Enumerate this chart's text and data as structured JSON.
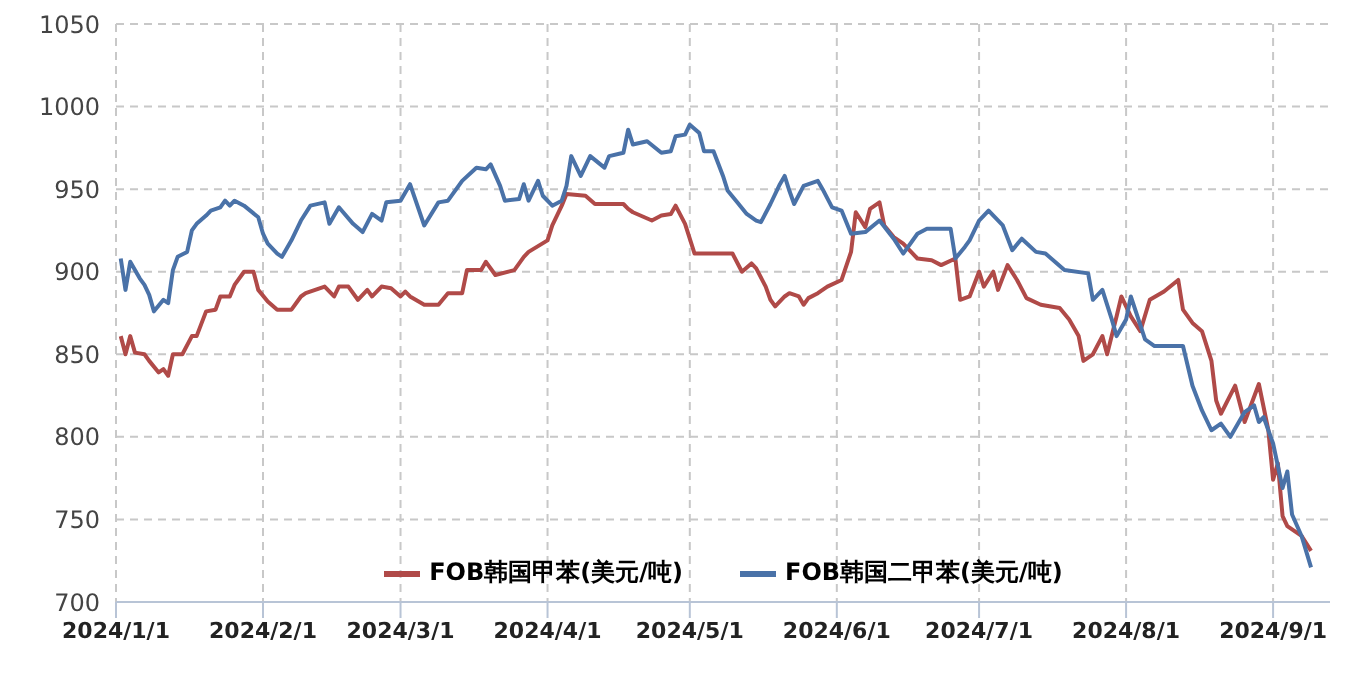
{
  "chart_data": {
    "type": "line",
    "xlim": [
      "2024-01-01",
      "2024-09-13"
    ],
    "xticks": [
      {
        "value": "2024-01-01",
        "label": "2024/1/1"
      },
      {
        "value": "2024-02-01",
        "label": "2024/2/1"
      },
      {
        "value": "2024-03-01",
        "label": "2024/3/1"
      },
      {
        "value": "2024-04-01",
        "label": "2024/4/1"
      },
      {
        "value": "2024-05-01",
        "label": "2024/5/1"
      },
      {
        "value": "2024-06-01",
        "label": "2024/6/1"
      },
      {
        "value": "2024-07-01",
        "label": "2024/7/1"
      },
      {
        "value": "2024-08-01",
        "label": "2024/8/1"
      },
      {
        "value": "2024-09-01",
        "label": "2024/9/1"
      }
    ],
    "ylim": [
      700,
      1050
    ],
    "yticks": [
      700,
      750,
      800,
      850,
      900,
      950,
      1000,
      1050
    ],
    "grid": true,
    "legend": "bottom",
    "marker": "none",
    "line_style": "solid",
    "series": [
      {
        "name": "FOB韩国甲苯(美元/吨)",
        "color": "#b04a48",
        "x": [
          "2024-01-02",
          "2024-01-03",
          "2024-01-04",
          "2024-01-05",
          "2024-01-07",
          "2024-01-08",
          "2024-01-10",
          "2024-01-11",
          "2024-01-12",
          "2024-01-13",
          "2024-01-15",
          "2024-01-17",
          "2024-01-18",
          "2024-01-20",
          "2024-01-22",
          "2024-01-23",
          "2024-01-25",
          "2024-01-26",
          "2024-01-28",
          "2024-01-30",
          "2024-01-31",
          "2024-02-02",
          "2024-02-04",
          "2024-02-07",
          "2024-02-09",
          "2024-02-10",
          "2024-02-12",
          "2024-02-14",
          "2024-02-16",
          "2024-02-17",
          "2024-02-19",
          "2024-02-21",
          "2024-02-23",
          "2024-02-24",
          "2024-02-26",
          "2024-02-28",
          "2024-03-01",
          "2024-03-02",
          "2024-03-03",
          "2024-03-06",
          "2024-03-09",
          "2024-03-11",
          "2024-03-14",
          "2024-03-15",
          "2024-03-18",
          "2024-03-19",
          "2024-03-21",
          "2024-03-25",
          "2024-03-27",
          "2024-03-28",
          "2024-04-01",
          "2024-04-02",
          "2024-04-04",
          "2024-04-05",
          "2024-04-09",
          "2024-04-11",
          "2024-04-17",
          "2024-04-18",
          "2024-04-19",
          "2024-04-23",
          "2024-04-25",
          "2024-04-27",
          "2024-04-28",
          "2024-04-30",
          "2024-05-02",
          "2024-05-10",
          "2024-05-12",
          "2024-05-14",
          "2024-05-15",
          "2024-05-17",
          "2024-05-18",
          "2024-05-19",
          "2024-05-21",
          "2024-05-22",
          "2024-05-24",
          "2024-05-25",
          "2024-05-26",
          "2024-05-28",
          "2024-05-30",
          "2024-06-02",
          "2024-06-04",
          "2024-06-05",
          "2024-06-07",
          "2024-06-08",
          "2024-06-10",
          "2024-06-11",
          "2024-06-13",
          "2024-06-15",
          "2024-06-18",
          "2024-06-21",
          "2024-06-23",
          "2024-06-26",
          "2024-06-27",
          "2024-06-29",
          "2024-07-01",
          "2024-07-02",
          "2024-07-04",
          "2024-07-05",
          "2024-07-07",
          "2024-07-09",
          "2024-07-11",
          "2024-07-14",
          "2024-07-18",
          "2024-07-20",
          "2024-07-22",
          "2024-07-23",
          "2024-07-25",
          "2024-07-27",
          "2024-07-28",
          "2024-07-30",
          "2024-07-31",
          "2024-08-02",
          "2024-08-04",
          "2024-08-06",
          "2024-08-09",
          "2024-08-12",
          "2024-08-13",
          "2024-08-15",
          "2024-08-17",
          "2024-08-19",
          "2024-08-20",
          "2024-08-21",
          "2024-08-24",
          "2024-08-26",
          "2024-08-29",
          "2024-08-31",
          "2024-09-01",
          "2024-09-02",
          "2024-09-03",
          "2024-09-04",
          "2024-09-07",
          "2024-09-09"
        ],
        "values": [
          861,
          850,
          861,
          851,
          850,
          846,
          839,
          841,
          837,
          850,
          850,
          861,
          861,
          876,
          877,
          885,
          885,
          892,
          900,
          900,
          889,
          882,
          877,
          877,
          885,
          887,
          889,
          891,
          885,
          891,
          891,
          883,
          889,
          885,
          891,
          890,
          885,
          888,
          885,
          880,
          880,
          887,
          887,
          901,
          901,
          906,
          898,
          901,
          909,
          912,
          919,
          928,
          940,
          947,
          946,
          941,
          941,
          938,
          936,
          931,
          934,
          935,
          940,
          929,
          911,
          911,
          900,
          905,
          902,
          891,
          883,
          879,
          885,
          887,
          885,
          880,
          884,
          887,
          891,
          895,
          912,
          936,
          927,
          938,
          942,
          928,
          921,
          917,
          908,
          907,
          904,
          908,
          883,
          885,
          900,
          891,
          900,
          889,
          904,
          895,
          884,
          880,
          878,
          871,
          861,
          846,
          850,
          861,
          850,
          873,
          885,
          873,
          864,
          883,
          888,
          895,
          877,
          869,
          864,
          846,
          822,
          814,
          831,
          809,
          832,
          804,
          774,
          784,
          752,
          746,
          740,
          731
        ]
      },
      {
        "name": "FOB韩国二甲苯(美元/吨)",
        "color": "#4a72a8",
        "x": [
          "2024-01-02",
          "2024-01-03",
          "2024-01-04",
          "2024-01-06",
          "2024-01-07",
          "2024-01-08",
          "2024-01-09",
          "2024-01-11",
          "2024-01-12",
          "2024-01-13",
          "2024-01-14",
          "2024-01-16",
          "2024-01-17",
          "2024-01-18",
          "2024-01-20",
          "2024-01-21",
          "2024-01-23",
          "2024-01-24",
          "2024-01-25",
          "2024-01-26",
          "2024-01-28",
          "2024-01-31",
          "2024-02-01",
          "2024-02-02",
          "2024-02-04",
          "2024-02-05",
          "2024-02-07",
          "2024-02-09",
          "2024-02-11",
          "2024-02-14",
          "2024-02-15",
          "2024-02-17",
          "2024-02-20",
          "2024-02-22",
          "2024-02-24",
          "2024-02-26",
          "2024-02-27",
          "2024-03-01",
          "2024-03-03",
          "2024-03-06",
          "2024-03-09",
          "2024-03-11",
          "2024-03-14",
          "2024-03-17",
          "2024-03-19",
          "2024-03-20",
          "2024-03-22",
          "2024-03-23",
          "2024-03-26",
          "2024-03-27",
          "2024-03-28",
          "2024-03-30",
          "2024-03-31",
          "2024-04-02",
          "2024-04-04",
          "2024-04-05",
          "2024-04-06",
          "2024-04-08",
          "2024-04-10",
          "2024-04-13",
          "2024-04-14",
          "2024-04-17",
          "2024-04-18",
          "2024-04-19",
          "2024-04-22",
          "2024-04-25",
          "2024-04-27",
          "2024-04-28",
          "2024-04-30",
          "2024-05-01",
          "2024-05-03",
          "2024-05-04",
          "2024-05-06",
          "2024-05-08",
          "2024-05-09",
          "2024-05-11",
          "2024-05-13",
          "2024-05-15",
          "2024-05-16",
          "2024-05-18",
          "2024-05-20",
          "2024-05-21",
          "2024-05-22",
          "2024-05-23",
          "2024-05-25",
          "2024-05-28",
          "2024-05-29",
          "2024-05-31",
          "2024-06-02",
          "2024-06-04",
          "2024-06-07",
          "2024-06-10",
          "2024-06-13",
          "2024-06-15",
          "2024-06-18",
          "2024-06-20",
          "2024-06-25",
          "2024-06-26",
          "2024-06-28",
          "2024-06-29",
          "2024-07-01",
          "2024-07-03",
          "2024-07-06",
          "2024-07-08",
          "2024-07-10",
          "2024-07-13",
          "2024-07-15",
          "2024-07-19",
          "2024-07-24",
          "2024-07-25",
          "2024-07-27",
          "2024-07-29",
          "2024-07-30",
          "2024-08-01",
          "2024-08-02",
          "2024-08-05",
          "2024-08-07",
          "2024-08-13",
          "2024-08-15",
          "2024-08-17",
          "2024-08-19",
          "2024-08-21",
          "2024-08-23",
          "2024-08-26",
          "2024-08-28",
          "2024-08-29",
          "2024-08-30",
          "2024-09-01",
          "2024-09-03",
          "2024-09-04",
          "2024-09-05",
          "2024-09-07",
          "2024-09-09"
        ],
        "values": [
          908,
          889,
          906,
          896,
          892,
          886,
          876,
          883,
          881,
          901,
          909,
          912,
          925,
          929,
          934,
          937,
          939,
          943,
          940,
          943,
          940,
          933,
          923,
          917,
          911,
          909,
          919,
          931,
          940,
          942,
          929,
          939,
          929,
          924,
          935,
          931,
          942,
          943,
          953,
          928,
          942,
          943,
          955,
          963,
          962,
          965,
          952,
          943,
          944,
          953,
          943,
          955,
          946,
          940,
          943,
          952,
          970,
          958,
          970,
          963,
          970,
          972,
          986,
          977,
          979,
          972,
          973,
          982,
          983,
          989,
          984,
          973,
          973,
          958,
          949,
          942,
          935,
          931,
          930,
          941,
          953,
          958,
          949,
          941,
          952,
          955,
          950,
          939,
          937,
          923,
          924,
          931,
          920,
          911,
          923,
          926,
          926,
          908,
          915,
          919,
          931,
          937,
          928,
          913,
          920,
          912,
          911,
          901,
          899,
          883,
          889,
          871,
          861,
          871,
          885,
          859,
          855,
          855,
          831,
          816,
          804,
          808,
          800,
          815,
          819,
          809,
          812,
          796,
          769,
          779,
          753,
          740,
          721
        ]
      }
    ]
  }
}
